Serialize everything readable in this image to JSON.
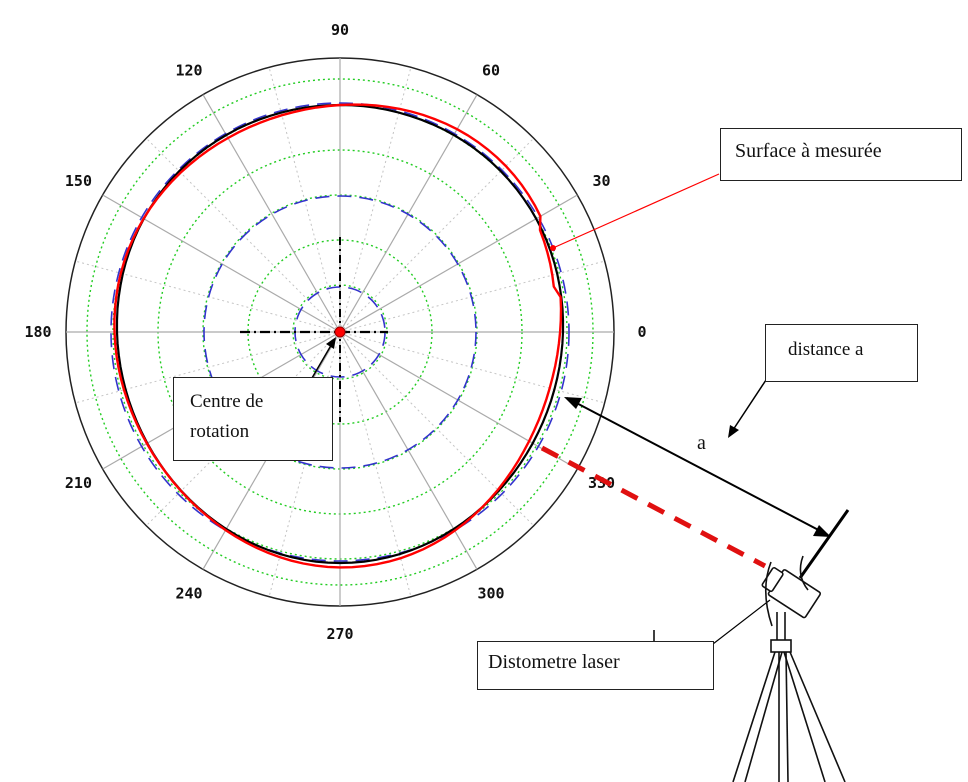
{
  "polar_plot": {
    "angle_labels": [
      {
        "text": "0",
        "angle": 0
      },
      {
        "text": "30",
        "angle": 30
      },
      {
        "text": "60",
        "angle": 60
      },
      {
        "text": "90",
        "angle": 90
      },
      {
        "text": "120",
        "angle": 120
      },
      {
        "text": "150",
        "angle": 150
      },
      {
        "text": "180",
        "angle": 180
      },
      {
        "text": "210",
        "angle": 210
      },
      {
        "text": "240",
        "angle": 240
      },
      {
        "text": "270",
        "angle": 270
      },
      {
        "text": "300",
        "angle": 300
      },
      {
        "text": "330",
        "angle": 330
      }
    ],
    "colors": {
      "red_profile": "#ff0000",
      "black_profile": "#000000",
      "blue_dashed": "#3333cc",
      "green_dotted": "#22cc22",
      "spoke_gray": "#aaaaaa"
    }
  },
  "annotations": {
    "surface": "Surface à mesurée",
    "distance": "distance a",
    "a_label": "a",
    "centre_line1": "Centre de",
    "centre_line2": "rotation",
    "laser": "Distometre laser"
  }
}
